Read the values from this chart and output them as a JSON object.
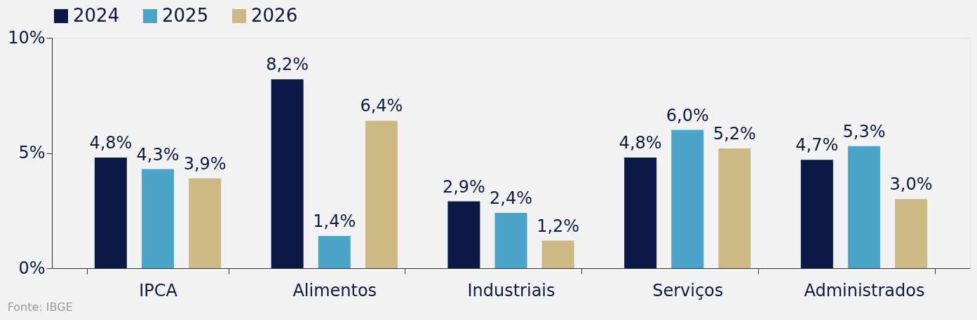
{
  "chart_data": {
    "type": "bar",
    "categories": [
      "IPCA",
      "Alimentos",
      "Industriais",
      "Serviços",
      "Administrados"
    ],
    "series": [
      {
        "name": "2024",
        "color": "#0a1a45",
        "values": [
          4.8,
          8.2,
          2.9,
          4.8,
          4.7
        ],
        "value_labels": [
          "4,8%",
          "8,2%",
          "2,9%",
          "4,8%",
          "4,7%"
        ]
      },
      {
        "name": "2025",
        "color": "#4aa3c8",
        "values": [
          4.3,
          1.4,
          2.4,
          6.0,
          5.3
        ],
        "value_labels": [
          "4,3%",
          "1,4%",
          "2,4%",
          "6,0%",
          "5,3%"
        ]
      },
      {
        "name": "2026",
        "color": "#cdb983",
        "values": [
          3.9,
          6.4,
          1.2,
          5.2,
          3.0
        ],
        "value_labels": [
          "3,9%",
          "6,4%",
          "1,2%",
          "5,2%",
          "3,0%"
        ]
      }
    ],
    "ylim": [
      0,
      10
    ],
    "yticks": [
      {
        "value": 0,
        "label": "0%"
      },
      {
        "value": 5,
        "label": "5%"
      },
      {
        "value": 10,
        "label": "10%"
      }
    ],
    "grid": false,
    "legend": "top",
    "annotations": [
      "Fonte: IBGE"
    ]
  }
}
